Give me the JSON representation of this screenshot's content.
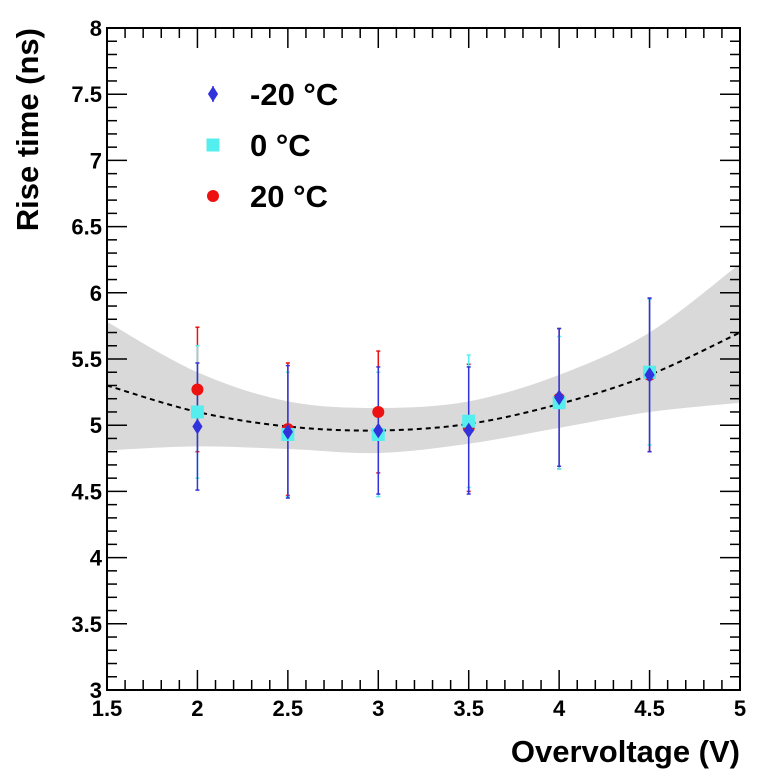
{
  "chart_data": {
    "type": "scatter",
    "title": "",
    "xlabel": "Overvoltage (V)",
    "ylabel": "Rise time (ns)",
    "xlim": [
      1.5,
      5
    ],
    "ylim": [
      3,
      8
    ],
    "x_ticks": [
      "1.5",
      "2",
      "2.5",
      "3",
      "3.5",
      "4",
      "4.5",
      "5"
    ],
    "y_ticks": [
      "3",
      "3.5",
      "4",
      "4.5",
      "5",
      "5.5",
      "6",
      "6.5",
      "7",
      "7.5",
      "8"
    ],
    "grid": false,
    "legend_position": "top-left",
    "series": [
      {
        "name": "-20 °C",
        "marker": "diamond",
        "color": "#3333dd",
        "points": [
          {
            "x": 2.0,
            "y": 4.99,
            "err": 0.48
          },
          {
            "x": 2.5,
            "y": 4.95,
            "err": 0.5
          },
          {
            "x": 3.0,
            "y": 4.96,
            "err": 0.48
          },
          {
            "x": 3.5,
            "y": 4.96,
            "err": 0.48
          },
          {
            "x": 4.0,
            "y": 5.21,
            "err": 0.52
          },
          {
            "x": 4.5,
            "y": 5.38,
            "err": 0.58
          }
        ]
      },
      {
        "name": "0 °C",
        "marker": "square",
        "color": "#55eeee",
        "points": [
          {
            "x": 2.0,
            "y": 5.1,
            "err": 0.5
          },
          {
            "x": 2.5,
            "y": 4.93,
            "err": 0.47
          },
          {
            "x": 3.0,
            "y": 4.93,
            "err": 0.47
          },
          {
            "x": 3.5,
            "y": 5.03,
            "err": 0.5
          },
          {
            "x": 4.0,
            "y": 5.17,
            "err": 0.5
          },
          {
            "x": 4.5,
            "y": 5.4,
            "err": 0.55
          }
        ]
      },
      {
        "name": "20 °C",
        "marker": "circle",
        "color": "#ee1111",
        "points": [
          {
            "x": 2.0,
            "y": 5.27,
            "err": 0.47
          },
          {
            "x": 2.5,
            "y": 4.97,
            "err": 0.5
          },
          {
            "x": 3.0,
            "y": 5.1,
            "err": 0.46
          },
          {
            "x": 3.5,
            "y": 4.98,
            "err": 0.48
          },
          {
            "x": 4.0,
            "y": 5.2,
            "err": 0.53
          },
          {
            "x": 4.5,
            "y": 5.38,
            "err": 0.58
          }
        ]
      }
    ],
    "fit_curve": {
      "style": "dashed",
      "color": "#000000",
      "points": [
        [
          1.5,
          5.3
        ],
        [
          2.0,
          5.1
        ],
        [
          2.5,
          4.99
        ],
        [
          3.0,
          4.96
        ],
        [
          3.5,
          5.01
        ],
        [
          4.0,
          5.16
        ],
        [
          4.5,
          5.38
        ],
        [
          5.0,
          5.7
        ]
      ]
    },
    "confidence_band": {
      "color": "#d9d9d9",
      "upper": [
        [
          1.5,
          5.78
        ],
        [
          2.0,
          5.4
        ],
        [
          2.5,
          5.18
        ],
        [
          3.0,
          5.13
        ],
        [
          3.5,
          5.18
        ],
        [
          4.0,
          5.38
        ],
        [
          4.5,
          5.7
        ],
        [
          5.0,
          6.22
        ]
      ],
      "lower": [
        [
          1.5,
          4.81
        ],
        [
          2.0,
          4.84
        ],
        [
          2.5,
          4.82
        ],
        [
          3.0,
          4.79
        ],
        [
          3.5,
          4.86
        ],
        [
          4.0,
          4.98
        ],
        [
          4.5,
          5.1
        ],
        [
          5.0,
          5.17
        ]
      ]
    }
  }
}
